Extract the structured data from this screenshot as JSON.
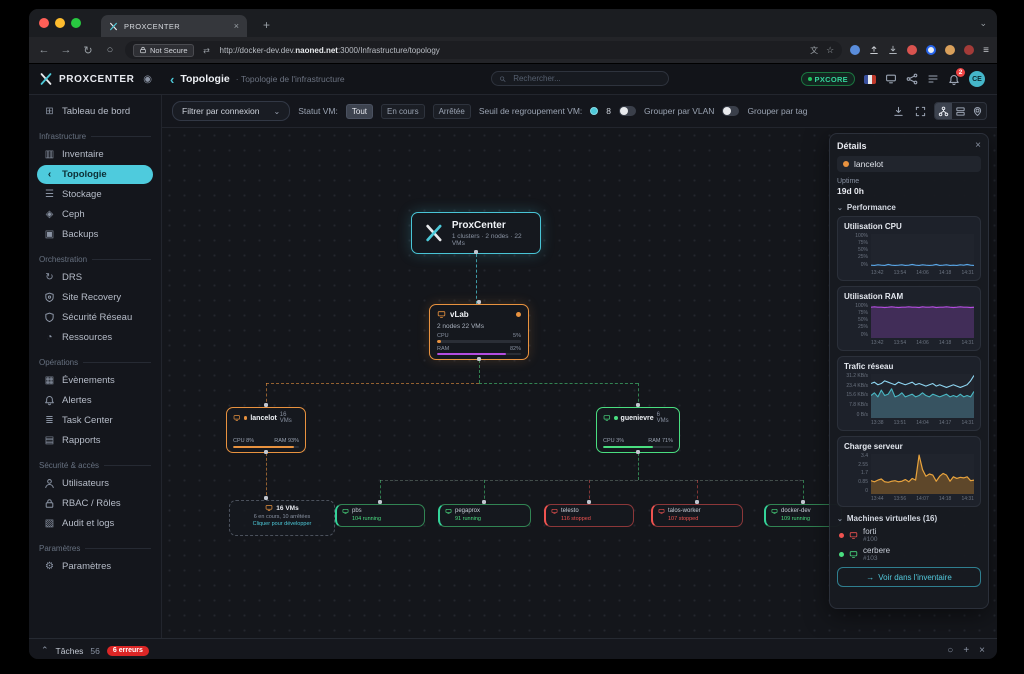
{
  "browser": {
    "tab": {
      "title": "PROXCENTER",
      "close": "×",
      "new_tab": "+",
      "chevron": "⌄"
    },
    "nav": {
      "not_secure": "Not Secure",
      "url_pre": "http://docker-dev.dev.",
      "url_host": "naoned.net",
      "url_post": ":3000/Infrastructure/topology"
    }
  },
  "header": {
    "brand": "PROXCENTER",
    "title": "Topologie",
    "breadcrumb_sep": "·",
    "breadcrumb": "Topologie de l'infrastructure",
    "search_placeholder": "Rechercher...",
    "env_badge": "PXCORE",
    "notif_count": "2",
    "avatar": "CE",
    "icons": {
      "title_icon": "topology",
      "screen": "screen",
      "nodes": "nodes",
      "list": "listedit",
      "bell": "bell",
      "target": "target"
    }
  },
  "sidebar": {
    "dashboard": {
      "label": "Tableau de bord",
      "icon": "grid"
    },
    "sections": [
      {
        "title": "Infrastructure",
        "items": [
          {
            "label": "Inventaire",
            "icon": "chart"
          },
          {
            "label": "Topologie",
            "icon": "topology",
            "active": true
          },
          {
            "label": "Stockage",
            "icon": "storage"
          },
          {
            "label": "Ceph",
            "icon": "ceph"
          },
          {
            "label": "Backups",
            "icon": "box"
          }
        ]
      },
      {
        "title": "Orchestration",
        "items": [
          {
            "label": "DRS",
            "icon": "sync"
          },
          {
            "label": "Site Recovery",
            "icon": "shieldlock"
          },
          {
            "label": "Sécurité Réseau",
            "icon": "shield"
          },
          {
            "label": "Ressources",
            "icon": "pie"
          }
        ]
      },
      {
        "title": "Opérations",
        "items": [
          {
            "label": "Évènements",
            "icon": "calendar"
          },
          {
            "label": "Alertes",
            "icon": "bell"
          },
          {
            "label": "Task Center",
            "icon": "tasks"
          },
          {
            "label": "Rapports",
            "icon": "report"
          }
        ]
      },
      {
        "title": "Sécurité & accès",
        "items": [
          {
            "label": "Utilisateurs",
            "icon": "user"
          },
          {
            "label": "RBAC / Rôles",
            "icon": "lock"
          },
          {
            "label": "Audit et logs",
            "icon": "audit"
          }
        ]
      },
      {
        "title": "Paramètres",
        "items": [
          {
            "label": "Paramètres",
            "icon": "gear"
          }
        ]
      }
    ]
  },
  "toolbar": {
    "filter": "Filtrer par connexion",
    "statut_label": "Statut VM:",
    "statuses": [
      "Tout",
      "En cours",
      "Arrêtée"
    ],
    "seuil_label": "Seuil de regroupement VM:",
    "seuil_value": "8",
    "vlan_label": "Grouper par VLAN",
    "tag_label": "Grouper par tag",
    "icons": [
      "download",
      "expand",
      "tree",
      "rows",
      "pin"
    ]
  },
  "topology": {
    "root": {
      "title": "ProxCenter",
      "subtitle": "1 clusters · 2 nodes · 22 VMs"
    },
    "cluster": {
      "name": "vLab",
      "info": "2 nodes 22 VMs",
      "cpu_label": "CPU",
      "cpu_value": "5%",
      "cpu_pct": 5,
      "ram_label": "RAM",
      "ram_value": "82%",
      "ram_pct": 82
    },
    "hosts": [
      {
        "name": "lancelot",
        "vm_count": "16 VMs",
        "cpu": "CPU 8%",
        "ram": "RAM 93%",
        "ram_pct": 93,
        "state": "warning"
      },
      {
        "name": "guenievre",
        "vm_count": "6 VMs",
        "cpu": "CPU 3%",
        "ram": "RAM 71%",
        "ram_pct": 71,
        "state": "ok"
      }
    ],
    "group": {
      "count": "16 VMs",
      "line2": "6 en cours, 10 arrêtées",
      "line3": "Cliquer pour développer"
    },
    "vms": [
      {
        "name": "pbs",
        "status": "104 running",
        "state": "running"
      },
      {
        "name": "pegaprox",
        "status": "91 running",
        "state": "running"
      },
      {
        "name": "telesto",
        "status": "116 stopped",
        "state": "stopped"
      },
      {
        "name": "talos-worker",
        "status": "107 stopped",
        "state": "stopped"
      },
      {
        "name": "docker-dev",
        "status": "109 running",
        "state": "running"
      }
    ]
  },
  "details": {
    "title": "Détails",
    "close": "×",
    "node_name": "lancelot",
    "uptime_label": "Uptime",
    "uptime_value": "19d 0h",
    "perf_label": "Performance",
    "vms_label": "Machines virtuelles (16)",
    "vms": [
      {
        "name": "forti",
        "id": "#100",
        "state": "stopped"
      },
      {
        "name": "cerbere",
        "id": "#103",
        "state": "running"
      }
    ],
    "button_label": "Voir dans l'inventaire",
    "charts": {
      "cpu": {
        "type": "line",
        "title": "Utilisation CPU",
        "ymin": 0,
        "ymax": 100,
        "yticks": [
          "100%",
          "75%",
          "50%",
          "25%",
          "0%"
        ],
        "xticks": [
          "13:42",
          "13:54",
          "14:06",
          "14:18",
          "14:31"
        ],
        "series": [
          {
            "name": "cpu",
            "color": "#5aa7e8",
            "width": 1.2,
            "values": [
              6,
              5,
              7,
              6,
              5,
              8,
              6,
              5,
              6,
              7,
              5,
              6,
              8,
              6,
              5,
              7,
              6,
              5,
              6,
              8,
              5,
              6,
              7,
              5,
              6,
              5,
              7,
              6,
              8,
              6,
              5
            ]
          }
        ]
      },
      "ram": {
        "type": "area",
        "title": "Utilisation RAM",
        "ymin": 0,
        "ymax": 100,
        "yticks": [
          "100%",
          "75%",
          "50%",
          "25%",
          "0%"
        ],
        "xticks": [
          "13:42",
          "13:54",
          "14:06",
          "14:18",
          "14:31"
        ],
        "series": [
          {
            "name": "ram",
            "color": "#b44de0",
            "width": 1.2,
            "fill": "rgba(120,60,160,0.38)",
            "values": [
              93,
              94,
              93,
              93,
              92,
              93,
              94,
              93,
              92,
              93,
              93,
              94,
              93,
              93,
              92,
              94,
              93,
              93,
              94,
              92,
              93,
              93,
              94,
              93,
              92,
              93,
              94,
              93,
              93,
              92,
              93
            ]
          }
        ]
      },
      "network": {
        "type": "line",
        "title": "Trafic réseau",
        "ymin": 0,
        "ymax": 31.2,
        "yticks": [
          "31.2 KB/s",
          "23.4 KB/s",
          "15.6 KB/s",
          "7.8 KB/s",
          "0 B/s"
        ],
        "xticks": [
          "13:38",
          "13:51",
          "14:04",
          "14:17",
          "14:31"
        ],
        "series": [
          {
            "name": "out",
            "color": "#49b8c4",
            "width": 1.1,
            "fill": "rgba(78,130,150,0.5)",
            "values": [
              16,
              18,
              15,
              20,
              16,
              17,
              21,
              15,
              16,
              18,
              15,
              16,
              17,
              15,
              16,
              18,
              16,
              15,
              17,
              16,
              15,
              16,
              17,
              15,
              16,
              15,
              17,
              15,
              16,
              15,
              19
            ]
          },
          {
            "name": "in",
            "color": "#8fd6f2",
            "width": 1.1,
            "values": [
              25,
              26,
              24,
              25,
              27,
              26,
              25,
              24,
              26,
              25,
              24,
              25,
              26,
              24,
              25,
              24,
              23,
              24,
              25,
              23,
              24,
              23,
              22,
              23,
              24,
              23,
              22,
              23,
              24,
              27,
              31
            ]
          }
        ]
      },
      "load": {
        "type": "area",
        "title": "Charge serveur",
        "ymin": 0,
        "ymax": 3.4,
        "yticks": [
          "3.4",
          "2.55",
          "1.7",
          "0.85",
          "0"
        ],
        "xticks": [
          "13:44",
          "13:56",
          "14:07",
          "14:18",
          "14:31"
        ],
        "series": [
          {
            "name": "load",
            "color": "#e8a33d",
            "width": 1.2,
            "fill": "rgba(170,115,40,0.45)",
            "values": [
              1.1,
              1.0,
              1.15,
              1.25,
              1.0,
              0.95,
              1.05,
              1.1,
              1.0,
              1.05,
              1.2,
              1.0,
              1.3,
              1.15,
              3.4,
              2.1,
              1.5,
              1.7,
              1.6,
              1.05,
              1.5,
              1.75,
              1.6,
              1.05,
              1.45,
              1.3,
              1.4,
              1.35,
              1.45,
              1.1,
              1.15
            ]
          }
        ]
      }
    }
  },
  "statusbar": {
    "tasks_label": "Tâches",
    "tasks_count": "56",
    "errors_badge": "6 erreurs"
  },
  "colors": {
    "accent_cyan": "#4dc9d8",
    "orange": "#e8923f",
    "green": "#4ade80",
    "red": "#ef5350",
    "purple": "#b44de0",
    "env_green": "#22c55e"
  }
}
